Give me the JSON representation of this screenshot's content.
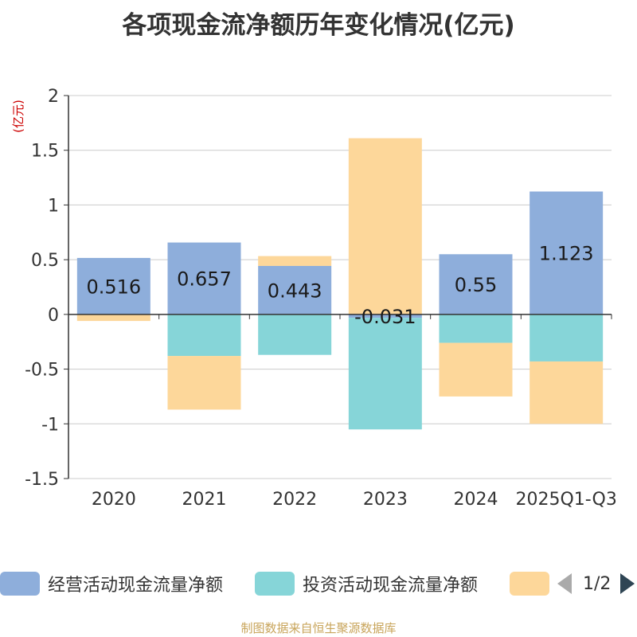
{
  "title": "各项现金流净额历年变化情况(亿元)",
  "source": "制图数据来自恒生聚源数据库",
  "chart_data": {
    "type": "bar",
    "stacked": true,
    "unit_label": "(亿元)",
    "categories": [
      "2020",
      "2021",
      "2022",
      "2023",
      "2024",
      "2025Q1-Q3"
    ],
    "ylim": [
      -1.5,
      2
    ],
    "yticks": [
      2,
      1.5,
      1,
      0.5,
      0,
      -0.5,
      -1,
      -1.5
    ],
    "ytick_labels": [
      "2",
      "1.5",
      "1",
      "0.5",
      "0",
      "-0.5",
      "-1",
      "-1.5"
    ],
    "series": [
      {
        "name": "经营活动现金流量净额",
        "color": "#8eaedb",
        "values": [
          0.516,
          0.657,
          0.443,
          -0.031,
          0.55,
          1.123
        ],
        "labels": [
          "0.516",
          "0.657",
          "0.443",
          "-0.031",
          "0.55",
          "1.123"
        ]
      },
      {
        "name": "投资活动现金流量净额",
        "color": "#86d5d8",
        "values": [
          0,
          -0.38,
          -0.37,
          -1.02,
          -0.26,
          -0.43
        ]
      },
      {
        "name": "",
        "color": "#fdd79a",
        "values": [
          -0.06,
          -0.49,
          0.09,
          1.61,
          -0.49,
          -0.57
        ]
      }
    ]
  },
  "legend": {
    "items": [
      {
        "label": "经营活动现金流量净额",
        "color": "#8eaedb"
      },
      {
        "label": "投资活动现金流量净额",
        "color": "#86d5d8"
      },
      {
        "label": "",
        "color": "#fdd79a"
      }
    ],
    "pager": "1/2"
  }
}
